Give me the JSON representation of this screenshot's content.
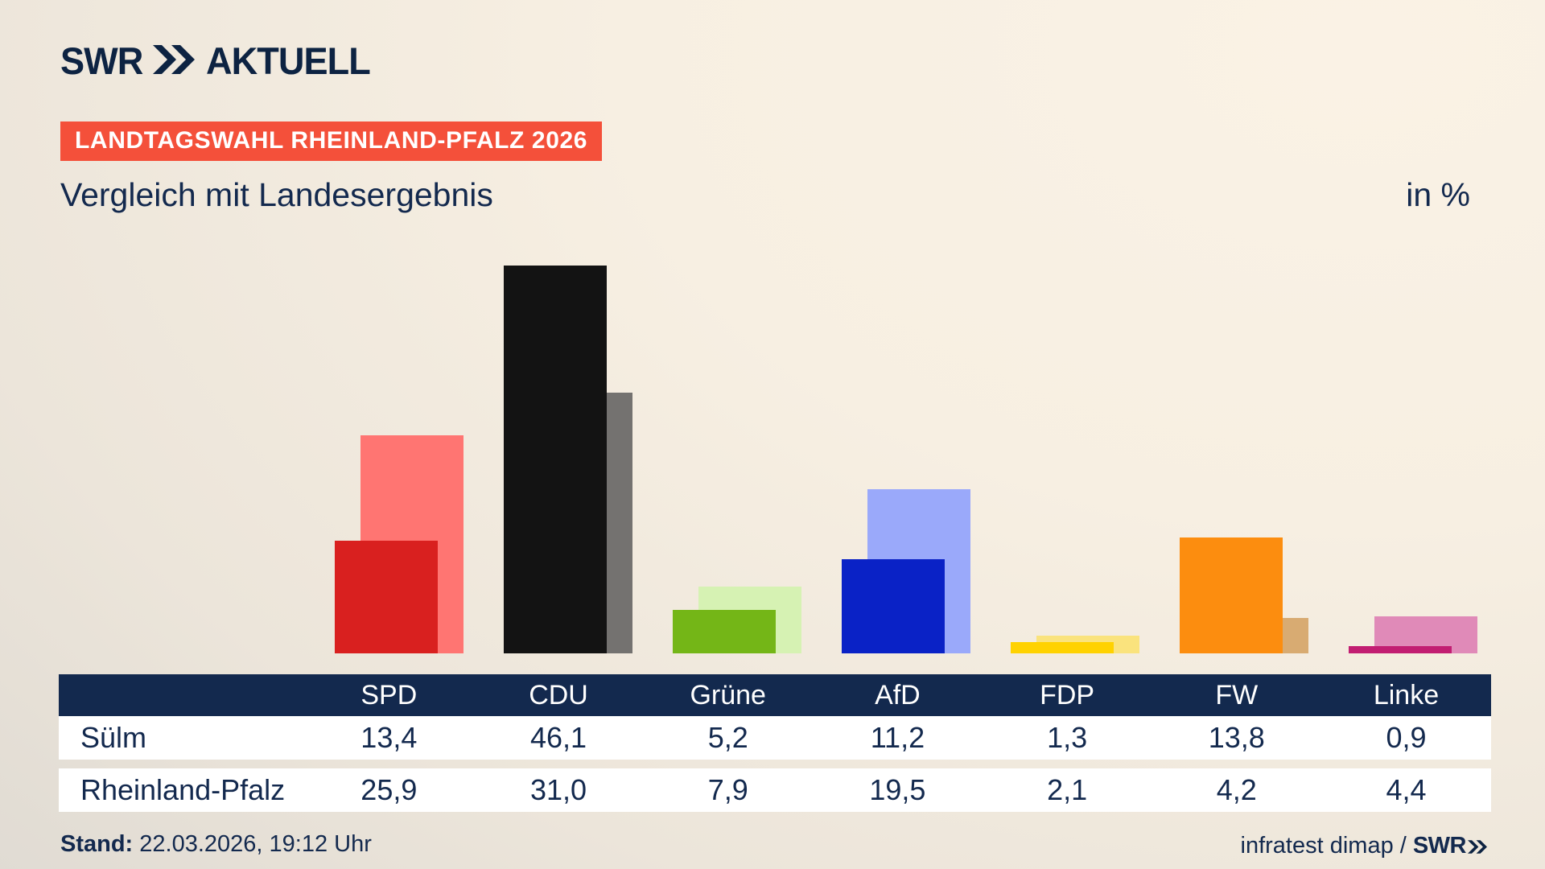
{
  "header": {
    "logo_brand": "SWR",
    "logo_suffix": "AKTUELL",
    "badge": "LANDTAGSWAHL RHEINLAND-PFALZ 2026",
    "title": "Vergleich mit Landesergebnis",
    "unit_label": "in %"
  },
  "chart_data": {
    "type": "bar",
    "title": "Vergleich mit Landesergebnis",
    "unit": "in %",
    "categories": [
      "SPD",
      "CDU",
      "Grüne",
      "AfD",
      "FDP",
      "FW",
      "Linke"
    ],
    "series": [
      {
        "name": "Sülm",
        "role": "foreground",
        "values": [
          13.4,
          46.1,
          5.2,
          11.2,
          1.3,
          13.8,
          0.9
        ],
        "colors": [
          "#d9201f",
          "#131313",
          "#74b617",
          "#0a22c6",
          "#ffd200",
          "#fc8d0f",
          "#c21e72"
        ]
      },
      {
        "name": "Rheinland-Pfalz",
        "role": "background",
        "values": [
          25.9,
          31.0,
          7.9,
          19.5,
          2.1,
          4.2,
          4.4
        ],
        "colors": [
          "#ff7572",
          "#747270",
          "#d6f2b3",
          "#9aa9fa",
          "#fae37d",
          "#d8ab72",
          "#e08ab8"
        ]
      }
    ],
    "ylim": [
      0,
      50
    ],
    "grid": false,
    "legend_position": "table-below"
  },
  "table": {
    "columns": [
      "SPD",
      "CDU",
      "Grüne",
      "AfD",
      "FDP",
      "FW",
      "Linke"
    ],
    "rows": [
      {
        "label": "Sülm",
        "values": [
          "13,4",
          "46,1",
          "5,2",
          "11,2",
          "1,3",
          "13,8",
          "0,9"
        ]
      },
      {
        "label": "Rheinland-Pfalz",
        "values": [
          "25,9",
          "31,0",
          "7,9",
          "19,5",
          "2,1",
          "4,2",
          "4,4"
        ]
      }
    ]
  },
  "footer": {
    "stand_label": "Stand:",
    "stand_value": " 22.03.2026, 19:12 Uhr",
    "source_text": "infratest dimap /",
    "source_brand": "SWR"
  },
  "colors": {
    "navy": "#13294e",
    "logo_navy": "#0d2342",
    "badge_red": "#f4503a",
    "row_bg": "#ffffff",
    "header_text": "#ffffff"
  }
}
